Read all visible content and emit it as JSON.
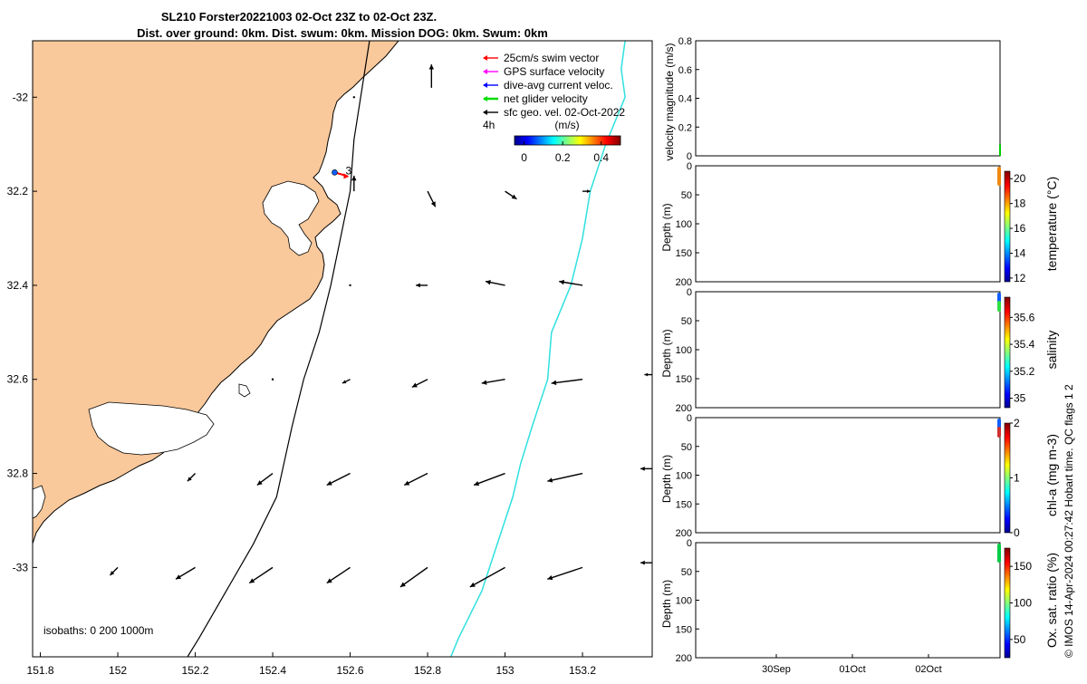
{
  "header": {
    "title_line1": "SL210 Forster20221003 02-Oct 23Z to 02-Oct 23Z.",
    "title_line2": "Dist. over ground: 0km. Dist. swum: 0km. Mission DOG: 0km. Swum: 0km"
  },
  "credit": "© IMOS 14-Apr-2024 00:27:42 Hobart time. QC flags 1  2",
  "chart_data": [
    {
      "type": "map",
      "x_ticks": [
        "151.8",
        "152",
        "152.2",
        "152.4",
        "152.6",
        "152.8",
        "153",
        "153.2"
      ],
      "x_tick_values": [
        151.8,
        152.0,
        152.2,
        152.4,
        152.6,
        152.8,
        153.0,
        153.2
      ],
      "y_ticks": [
        "-32",
        "32.2",
        "32.4",
        "32.6",
        "32.8",
        "-33"
      ],
      "y_tick_values": [
        -32.0,
        -32.2,
        -32.4,
        -32.6,
        -32.8,
        -33.0
      ],
      "xlim": [
        151.78,
        153.38
      ],
      "ylim": [
        -33.19,
        -31.88
      ],
      "land_color": "#f9c89b",
      "legend": [
        {
          "label": "25cm/s swim vector",
          "color": "#ff0000"
        },
        {
          "label": "GPS surface velocity",
          "color": "#ff00ff"
        },
        {
          "label": "dive-avg current veloc.",
          "color": "#0000ff"
        },
        {
          "label": "net glider velocity",
          "color": "#00dd00"
        },
        {
          "label": "sfc geo. vel. 02-Oct-2022",
          "color": "#000000"
        }
      ],
      "legend_extra": "4h",
      "colorbar": {
        "label": "(m/s)",
        "ticks": [
          "0",
          "0.2",
          "0.4"
        ],
        "tick_values": [
          0,
          0.2,
          0.4
        ],
        "range": [
          -0.05,
          0.5
        ]
      },
      "isobaths_label": "isobaths: 0   200  1000m",
      "glider_label": "3",
      "glider_position": {
        "lon": 152.56,
        "lat": -32.16
      },
      "isobath_200m": [
        [
          152.65,
          -31.88
        ],
        [
          152.61,
          -32.09
        ],
        [
          152.6,
          -32.2
        ],
        [
          152.55,
          -32.4
        ],
        [
          152.52,
          -32.5
        ],
        [
          152.48,
          -32.6
        ],
        [
          152.45,
          -32.7
        ],
        [
          152.41,
          -32.85
        ],
        [
          152.35,
          -32.95
        ],
        [
          152.28,
          -33.05
        ],
        [
          152.21,
          -33.15
        ],
        [
          152.18,
          -33.19
        ]
      ],
      "isobath_1000m": [
        [
          153.31,
          -31.88
        ],
        [
          153.3,
          -31.94
        ],
        [
          153.31,
          -32.0
        ],
        [
          153.26,
          -32.1
        ],
        [
          153.22,
          -32.2
        ],
        [
          153.2,
          -32.3
        ],
        [
          153.17,
          -32.4
        ],
        [
          153.12,
          -32.5
        ],
        [
          153.11,
          -32.6
        ],
        [
          153.07,
          -32.7
        ],
        [
          153.04,
          -32.78
        ],
        [
          153.02,
          -32.85
        ],
        [
          152.98,
          -32.95
        ],
        [
          152.94,
          -33.05
        ],
        [
          152.88,
          -33.15
        ],
        [
          152.86,
          -33.19
        ]
      ],
      "current_vectors": [
        {
          "lon": 152.61,
          "lat": -32.0,
          "u": 0.0,
          "v": 0.0
        },
        {
          "lon": 152.81,
          "lat": -31.98,
          "u": 0.0,
          "v": 0.06
        },
        {
          "lon": 152.61,
          "lat": -32.2,
          "u": 0.0,
          "v": 0.04
        },
        {
          "lon": 152.8,
          "lat": -32.2,
          "u": 0.02,
          "v": -0.04
        },
        {
          "lon": 153.0,
          "lat": -32.2,
          "u": 0.03,
          "v": -0.02
        },
        {
          "lon": 153.2,
          "lat": -32.2,
          "u": 0.02,
          "v": 0.0
        },
        {
          "lon": 152.6,
          "lat": -32.4,
          "u": 0.0,
          "v": 0.0
        },
        {
          "lon": 152.8,
          "lat": -32.4,
          "u": -0.03,
          "v": 0.0
        },
        {
          "lon": 153.0,
          "lat": -32.4,
          "u": -0.05,
          "v": 0.01
        },
        {
          "lon": 153.2,
          "lat": -32.4,
          "u": -0.06,
          "v": 0.01
        },
        {
          "lon": 152.4,
          "lat": -32.6,
          "u": 0.0,
          "v": 0.0
        },
        {
          "lon": 152.6,
          "lat": -32.6,
          "u": -0.02,
          "v": -0.01
        },
        {
          "lon": 152.8,
          "lat": -32.6,
          "u": -0.04,
          "v": -0.02
        },
        {
          "lon": 153.0,
          "lat": -32.6,
          "u": -0.06,
          "v": -0.01
        },
        {
          "lon": 153.2,
          "lat": -32.6,
          "u": -0.08,
          "v": -0.01
        },
        {
          "lon": 153.38,
          "lat": -32.59,
          "u": -0.02,
          "v": 0.0
        },
        {
          "lon": 152.2,
          "lat": -32.8,
          "u": -0.02,
          "v": -0.02
        },
        {
          "lon": 152.4,
          "lat": -32.8,
          "u": -0.04,
          "v": -0.03
        },
        {
          "lon": 152.6,
          "lat": -32.8,
          "u": -0.06,
          "v": -0.03
        },
        {
          "lon": 152.8,
          "lat": -32.8,
          "u": -0.06,
          "v": -0.03
        },
        {
          "lon": 153.0,
          "lat": -32.8,
          "u": -0.08,
          "v": -0.03
        },
        {
          "lon": 153.2,
          "lat": -32.8,
          "u": -0.09,
          "v": -0.02
        },
        {
          "lon": 153.38,
          "lat": -32.79,
          "u": -0.03,
          "v": 0.0
        },
        {
          "lon": 152.0,
          "lat": -33.0,
          "u": -0.02,
          "v": -0.02
        },
        {
          "lon": 152.2,
          "lat": -33.0,
          "u": -0.05,
          "v": -0.03
        },
        {
          "lon": 152.4,
          "lat": -33.0,
          "u": -0.06,
          "v": -0.04
        },
        {
          "lon": 152.6,
          "lat": -33.0,
          "u": -0.06,
          "v": -0.04
        },
        {
          "lon": 152.8,
          "lat": -33.0,
          "u": -0.07,
          "v": -0.05
        },
        {
          "lon": 153.0,
          "lat": -33.0,
          "u": -0.09,
          "v": -0.05
        },
        {
          "lon": 153.2,
          "lat": -33.0,
          "u": -0.09,
          "v": -0.03
        },
        {
          "lon": 153.38,
          "lat": -32.99,
          "u": -0.03,
          "v": 0.0
        }
      ]
    },
    {
      "type": "line",
      "ylabel": "velocity magnitude (m/s)",
      "ylim": [
        0,
        0.8
      ],
      "y_ticks": [
        "0",
        "0.2",
        "0.4",
        "0.6",
        "0.8"
      ],
      "y_tick_values": [
        0,
        0.2,
        0.4,
        0.6,
        0.8
      ]
    },
    {
      "type": "scatter",
      "ylabel": "Depth (m)",
      "ylim": [
        200,
        0
      ],
      "y_ticks": [
        "0",
        "50",
        "100",
        "150",
        "200"
      ],
      "colorbar_label": "temperature (°C)",
      "colorbar_ticks": [
        "12",
        "14",
        "16",
        "18",
        "20"
      ],
      "colorbar_range": [
        11.7,
        20.6
      ],
      "depth_profile_color": "#ef8a10"
    },
    {
      "type": "scatter",
      "ylabel": "Depth (m)",
      "ylim": [
        200,
        0
      ],
      "y_ticks": [
        "0",
        "50",
        "100",
        "150",
        "200"
      ],
      "colorbar_label": "salinity",
      "colorbar_ticks": [
        "35",
        "35.2",
        "35.4",
        "35.6"
      ],
      "colorbar_range": [
        34.93,
        35.75
      ]
    },
    {
      "type": "scatter",
      "ylabel": "Depth (m)",
      "ylim": [
        200,
        0
      ],
      "y_ticks": [
        "0",
        "50",
        "100",
        "150",
        "200"
      ],
      "colorbar_label": "chl-a (mg m-3)",
      "colorbar_ticks": [
        "0",
        "1",
        "2"
      ],
      "colorbar_range": [
        0,
        2
      ]
    },
    {
      "type": "scatter",
      "ylabel": "Depth (m)",
      "ylim": [
        200,
        0
      ],
      "y_ticks": [
        "0",
        "50",
        "100",
        "150",
        "200"
      ],
      "colorbar_label": "Ox. sat. ratio (%)",
      "colorbar_ticks": [
        "50",
        "100",
        "150"
      ],
      "colorbar_range": [
        25,
        175
      ],
      "x_ticks": [
        "30Sep",
        "01Oct",
        "02Oct"
      ]
    }
  ]
}
